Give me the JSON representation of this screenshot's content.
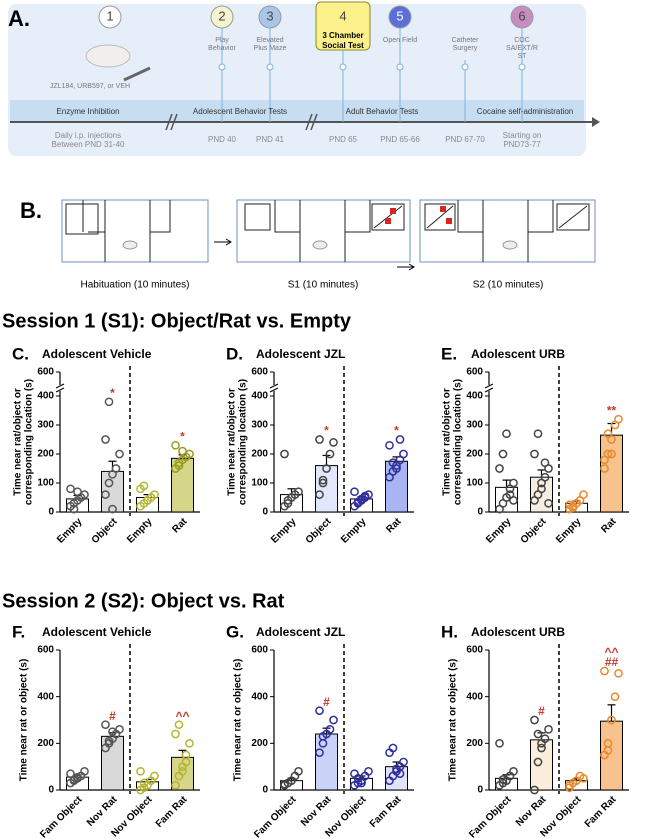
{
  "panel_a": {
    "letter": "A.",
    "steps": [
      {
        "number": "1",
        "label": [
          "JZL184, URB597, or VEH"
        ],
        "day": [
          "Daily i.p. injections",
          "Between PND 31-40"
        ]
      },
      {
        "number": "2",
        "label": [
          "Play",
          "Behavior"
        ],
        "day": [
          "PND 40"
        ]
      },
      {
        "number": "3",
        "label": [
          "Elevated",
          "Plus Maze"
        ],
        "day": [
          "PND 41"
        ]
      },
      {
        "number": "4",
        "label": [
          "3 Chamber",
          "Social Test"
        ],
        "day": [
          "PND 65"
        ]
      },
      {
        "number": "5",
        "label": [
          "Open Field"
        ],
        "day": [
          "PND 65-66"
        ]
      },
      {
        "label": [
          "Catheter",
          "Surgery"
        ],
        "day": [
          "PND 67-70"
        ]
      },
      {
        "number": "6",
        "label": [
          "COC",
          "SA/EXT/R",
          "ST"
        ],
        "day": [
          "Starting on",
          "PND73-77"
        ]
      }
    ],
    "sections": [
      "Enzyme Inhibition",
      "Adolescent Behavior Tests",
      "Adult Behavior Tests",
      "Cocaine self-administration"
    ]
  },
  "panel_b": {
    "letter": "B.",
    "captions": [
      "Habituation (10 minutes)",
      "S1 (10 minutes)",
      "S2 (10 minutes)"
    ]
  },
  "session_titles": [
    "Session 1 (S1): Object/Rat vs. Empty",
    "Session 2 (S2): Object vs. Rat"
  ],
  "chart_data": [
    {
      "type": "bar",
      "letter": "C.",
      "title": "Adolescent Vehicle",
      "ylabel": [
        "Time near rat/object or",
        "corresponding location (s)"
      ],
      "categories": [
        "Empty",
        "Object",
        "Empty",
        "Rat"
      ],
      "values": [
        45,
        140,
        50,
        185
      ],
      "errors": [
        12,
        35,
        10,
        12
      ],
      "points": [
        [
          20,
          30,
          40,
          50,
          60,
          80,
          10,
          70
        ],
        [
          60,
          100,
          130,
          150,
          200,
          250,
          380,
          10
        ],
        [
          20,
          30,
          40,
          50,
          60,
          80,
          90,
          40
        ],
        [
          150,
          170,
          180,
          190,
          200,
          230,
          160,
          210
        ]
      ],
      "bar_colors": [
        "#ffffff",
        "#d9d9d9",
        "#ffffff",
        "#d6d68a"
      ],
      "point_colors": [
        "#555555",
        "#555555",
        "#b5b532",
        "#9a9a20"
      ],
      "annotations": [
        [],
        [
          "*"
        ],
        [],
        [
          "*"
        ]
      ],
      "ylim": [
        0,
        600
      ],
      "axis_break": [
        400,
        600
      ],
      "yticks": [
        0,
        100,
        200,
        300,
        400,
        600
      ]
    },
    {
      "type": "bar",
      "letter": "D.",
      "title": "Adolescent JZL",
      "ylabel": [
        "Time near rat/object or",
        "corresponding location (s)"
      ],
      "categories": [
        "Empty",
        "Object",
        "Empty",
        "Rat"
      ],
      "values": [
        60,
        160,
        45,
        175
      ],
      "errors": [
        20,
        35,
        8,
        15
      ],
      "points": [
        [
          20,
          30,
          50,
          60,
          70,
          200,
          40
        ],
        [
          60,
          100,
          150,
          200,
          240,
          250,
          110
        ],
        [
          20,
          30,
          40,
          50,
          60,
          70,
          35,
          45,
          55
        ],
        [
          120,
          140,
          160,
          180,
          200,
          230,
          170,
          150,
          250
        ]
      ],
      "bar_colors": [
        "#ffffff",
        "#e3e7fb",
        "#ffffff",
        "#a9b4f2"
      ],
      "point_colors": [
        "#444444",
        "#444444",
        "#2f2f9c",
        "#2f2f9c"
      ],
      "annotations": [
        [],
        [
          "*"
        ],
        [],
        [
          "*"
        ]
      ],
      "ylim": [
        0,
        600
      ],
      "axis_break": [
        400,
        600
      ],
      "yticks": [
        0,
        100,
        200,
        300,
        400,
        600
      ]
    },
    {
      "type": "bar",
      "letter": "E.",
      "title": "Adolescent URB",
      "ylabel": [
        "Time near rat/object or",
        "corresponding location (s)"
      ],
      "categories": [
        "Empty",
        "Object",
        "Empty",
        "Rat"
      ],
      "values": [
        85,
        120,
        30,
        265
      ],
      "errors": [
        25,
        25,
        8,
        40
      ],
      "points": [
        [
          10,
          30,
          50,
          80,
          100,
          150,
          200,
          270,
          60,
          40
        ],
        [
          40,
          60,
          100,
          120,
          150,
          200,
          270,
          80,
          170,
          30
        ],
        [
          10,
          20,
          30,
          40,
          60,
          25,
          15
        ],
        [
          150,
          200,
          250,
          300,
          320,
          180,
          270,
          200
        ]
      ],
      "bar_colors": [
        "#ffffff",
        "#f6eee2",
        "#ffffff",
        "#f7c28e"
      ],
      "point_colors": [
        "#444444",
        "#444444",
        "#e8892c",
        "#e8892c"
      ],
      "annotations": [
        [],
        [],
        [],
        [
          "**"
        ]
      ],
      "ylim": [
        0,
        600
      ],
      "axis_break": [
        400,
        600
      ],
      "yticks": [
        0,
        100,
        200,
        300,
        400,
        600
      ]
    },
    {
      "type": "bar",
      "letter": "F.",
      "title": "Adolescent Vehicle",
      "ylabel": [
        "Time near rat or object (s)"
      ],
      "categories": [
        "Fam Object",
        "Nov Rat",
        "Nov Object",
        "Fam Rat"
      ],
      "values": [
        55,
        230,
        35,
        140
      ],
      "errors": [
        8,
        15,
        10,
        30
      ],
      "points": [
        [
          30,
          40,
          50,
          60,
          80,
          70,
          45,
          55
        ],
        [
          180,
          200,
          220,
          240,
          260,
          280,
          210,
          250
        ],
        [
          0,
          10,
          20,
          40,
          60,
          80,
          30
        ],
        [
          20,
          60,
          100,
          150,
          200,
          240,
          280,
          80,
          120
        ]
      ],
      "bar_colors": [
        "#ffffff",
        "#d9d9d9",
        "#ffffff",
        "#d6d68a"
      ],
      "point_colors": [
        "#555555",
        "#555555",
        "#b5b532",
        "#b5b532"
      ],
      "annotations": [
        [],
        [
          "#"
        ],
        [],
        [
          "^^"
        ]
      ],
      "ylim": [
        0,
        600
      ],
      "yticks": [
        0,
        200,
        400,
        600
      ]
    },
    {
      "type": "bar",
      "letter": "G.",
      "title": "Adolescent JZL",
      "ylabel": [
        "Time near rat or object (s)"
      ],
      "categories": [
        "Fam Object",
        "Nov Rat",
        "Nov Object",
        "Fam Rat"
      ],
      "values": [
        40,
        240,
        50,
        100
      ],
      "errors": [
        10,
        25,
        10,
        20
      ],
      "points": [
        [
          20,
          30,
          40,
          60,
          80,
          25
        ],
        [
          160,
          200,
          240,
          260,
          300,
          340,
          230
        ],
        [
          20,
          30,
          40,
          60,
          80,
          70,
          50,
          30
        ],
        [
          40,
          60,
          80,
          100,
          120,
          160,
          180,
          90,
          70
        ]
      ],
      "bar_colors": [
        "#ffffff",
        "#c9d3f7",
        "#ffffff",
        "#dfe3fb"
      ],
      "point_colors": [
        "#444444",
        "#2f2f9c",
        "#2f2f9c",
        "#2f2f9c"
      ],
      "annotations": [
        [],
        [
          "#"
        ],
        [],
        []
      ],
      "ylim": [
        0,
        600
      ],
      "yticks": [
        0,
        200,
        400,
        600
      ]
    },
    {
      "type": "bar",
      "letter": "H.",
      "title": "Adolescent URB",
      "ylabel": [
        "Time near rat or object (s)"
      ],
      "categories": [
        "Fam Object",
        "Nov Rat",
        "Nov Object",
        "Fam Rat"
      ],
      "values": [
        50,
        215,
        40,
        295
      ],
      "errors": [
        15,
        30,
        8,
        70
      ],
      "points": [
        [
          20,
          30,
          40,
          60,
          80,
          200,
          45
        ],
        [
          0,
          120,
          180,
          220,
          260,
          300,
          240,
          200
        ],
        [
          20,
          30,
          40,
          60,
          50,
          10
        ],
        [
          150,
          200,
          300,
          400,
          500,
          510,
          170
        ]
      ],
      "bar_colors": [
        "#ffffff",
        "#fbeedd",
        "#ffffff",
        "#f7c28e"
      ],
      "point_colors": [
        "#444444",
        "#444444",
        "#e8892c",
        "#e8892c"
      ],
      "annotations": [
        [],
        [
          "#"
        ],
        [],
        [
          "^^",
          "##"
        ]
      ],
      "ylim": [
        0,
        600
      ],
      "yticks": [
        0,
        200,
        400,
        600
      ]
    }
  ]
}
